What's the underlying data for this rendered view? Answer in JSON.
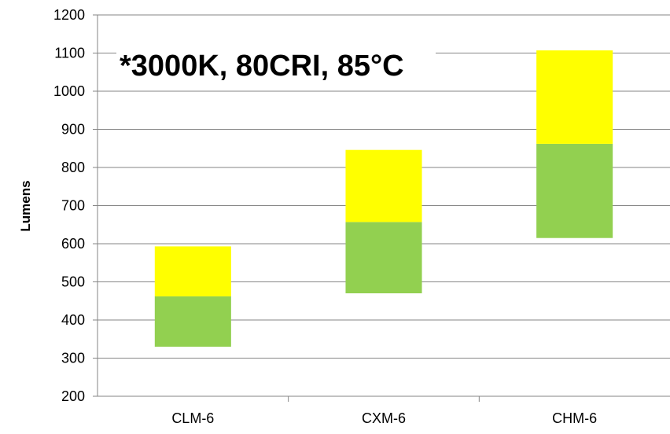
{
  "chart_data": {
    "type": "bar",
    "subtype": "floating-stacked",
    "categories": [
      "CLM-6",
      "CXM-6",
      "CHM-6"
    ],
    "series": [
      {
        "color": "#92D050",
        "ranges": [
          [
            330,
            462
          ],
          [
            470,
            657
          ],
          [
            615,
            862
          ]
        ]
      },
      {
        "color": "#FFFF00",
        "ranges": [
          [
            462,
            593
          ],
          [
            657,
            846
          ],
          [
            862,
            1107
          ]
        ]
      }
    ],
    "xlabel": "",
    "ylabel": "Lumens",
    "ylim": [
      200,
      1200
    ],
    "yticks": [
      "200",
      "300",
      "400",
      "500",
      "600",
      "700",
      "800",
      "900",
      "1000",
      "1100",
      "1200"
    ],
    "annotation": "*3000K, 80CRI, 85°C",
    "grid": true,
    "legend": "none"
  }
}
